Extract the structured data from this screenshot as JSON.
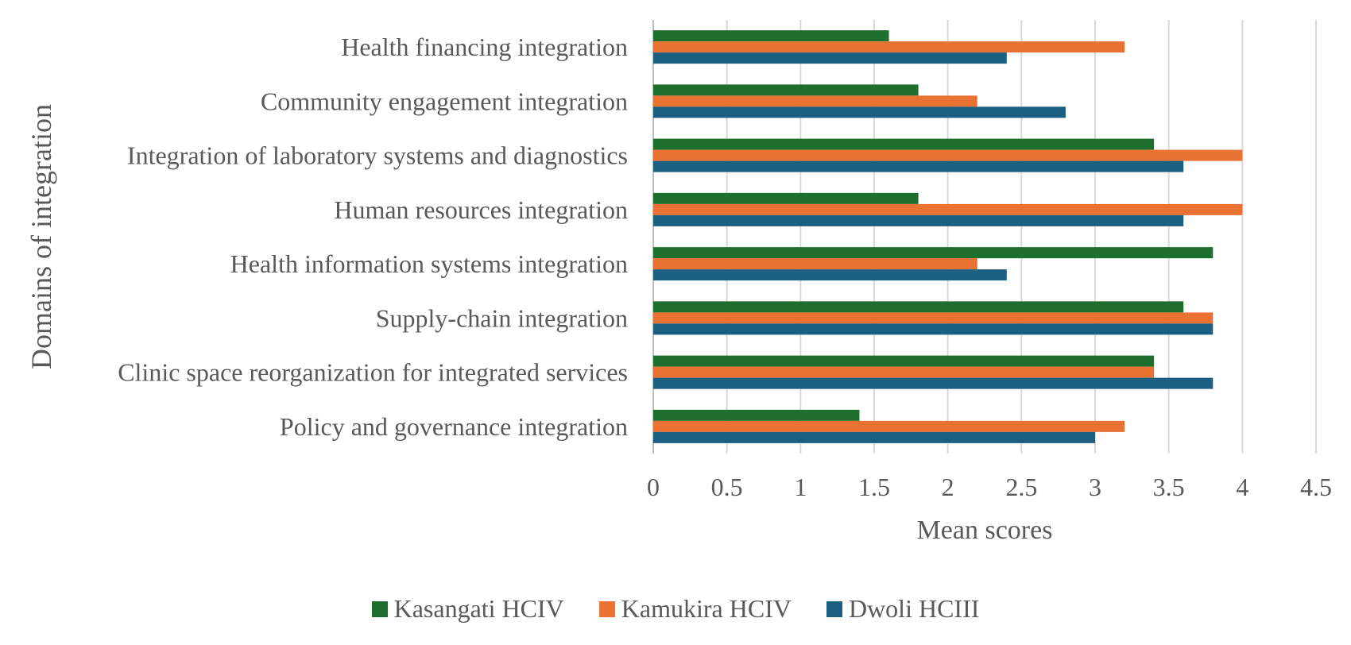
{
  "chart_data": {
    "type": "bar",
    "orientation": "horizontal",
    "title": "",
    "xlabel": "Mean scores",
    "ylabel": "Domains of integration",
    "xlim": [
      0,
      4.5
    ],
    "xticks": [
      "0",
      "0.5",
      "1",
      "1.5",
      "2",
      "2.5",
      "3",
      "3.5",
      "4",
      "4.5"
    ],
    "grid": "vertical",
    "legend_position": "bottom",
    "categories": [
      "Health financing integration",
      "Community engagement integration",
      "Integration of laboratory systems and diagnostics",
      "Human resources integration",
      "Health information systems integration",
      "Supply-chain integration",
      "Clinic space reorganization for integrated services",
      "Policy and governance integration"
    ],
    "series": [
      {
        "name": "Kasangati HCIV",
        "color": "#1E6F2E",
        "values": [
          1.6,
          1.8,
          3.4,
          1.8,
          3.8,
          3.6,
          3.4,
          1.4
        ]
      },
      {
        "name": "Kamukira HCIV",
        "color": "#E97132",
        "values": [
          3.2,
          2.2,
          4.0,
          4.0,
          2.2,
          3.8,
          3.4,
          3.2
        ]
      },
      {
        "name": "Dwoli HCIII",
        "color": "#1B5F82",
        "values": [
          2.4,
          2.8,
          3.6,
          3.6,
          2.4,
          3.8,
          3.8,
          3.0
        ]
      }
    ]
  }
}
